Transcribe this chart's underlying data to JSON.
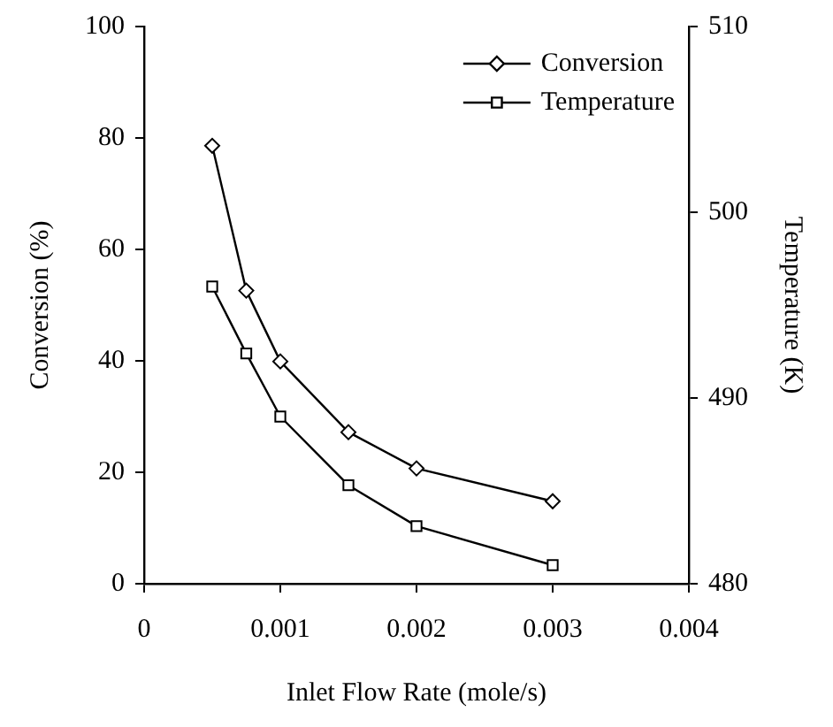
{
  "chart_data": {
    "type": "line",
    "xlabel": "Inlet Flow Rate (mole/s)",
    "ylabel": "Conversion (%)",
    "y2label": "Temperature (K)",
    "x": [
      0.0005,
      0.00075,
      0.001,
      0.0015,
      0.002,
      0.003
    ],
    "series": [
      {
        "name": "Conversion",
        "color": "#000000",
        "values": [
          78.6,
          52.6,
          39.9,
          27.2,
          20.7,
          14.8
        ],
        "marker": "diamond"
      },
      {
        "name": "Temperature",
        "color": "#000000",
        "values": [
          496.0,
          492.4,
          489.0,
          485.3,
          483.1,
          481.0
        ],
        "marker": "square",
        "axis": "y2"
      }
    ],
    "xlim": [
      0,
      0.004
    ],
    "xticks": [
      0,
      0.001,
      0.002,
      0.003,
      0.004
    ],
    "ylim": [
      0,
      100
    ],
    "yticks": [
      0,
      20,
      40,
      60,
      80,
      100
    ],
    "y2lim": [
      480,
      510
    ],
    "y2ticks": [
      480,
      490,
      500,
      510
    ],
    "grid": false,
    "legend": "top right",
    "line_style": "solid"
  }
}
